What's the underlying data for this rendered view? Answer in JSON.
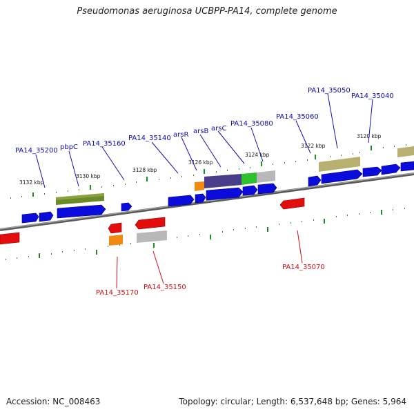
{
  "title": "Pseudomonas aeruginosa UCBPP-PA14, complete genome",
  "footer": {
    "accession": "Accession: NC_008463",
    "stats": "Topology: circular; Length: 6,537,648 bp; Genes: 5,964"
  },
  "colors": {
    "forward_gene": "#0b0bdc",
    "reverse_gene": "#e40d0d",
    "forward_label": "#0a0aa8",
    "reverse_label": "#cc1010",
    "backbone": "#7a7a7a",
    "ticks": "#1f8a1f"
  },
  "scale_labels": [
    "3132 kbp",
    "3130 kbp",
    "3128 kbp",
    "3126 kbp",
    "3124 kbp",
    "3122 kbp",
    "3120 kbp"
  ],
  "forward_labels": [
    "PA14_35200",
    "pbpC",
    "PA14_35160",
    "PA14_35140",
    "arsR",
    "arsB",
    "arsC",
    "PA14_35080",
    "PA14_35060",
    "PA14_35050",
    "PA14_35040"
  ],
  "reverse_labels": [
    "PA14_35170",
    "PA14_35150",
    "PA14_35070"
  ]
}
